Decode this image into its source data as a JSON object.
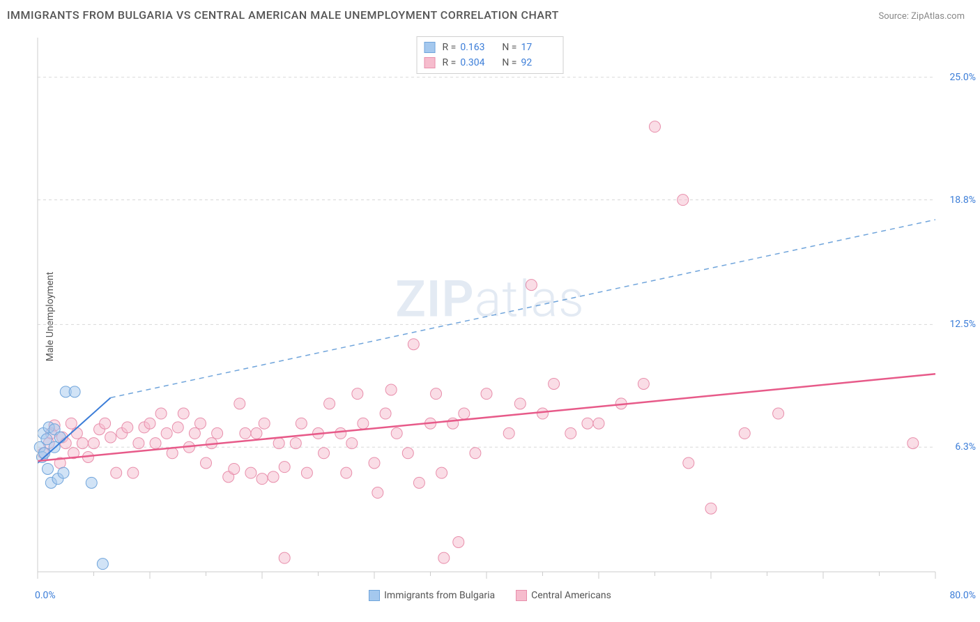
{
  "header": {
    "title": "IMMIGRANTS FROM BULGARIA VS CENTRAL AMERICAN MALE UNEMPLOYMENT CORRELATION CHART",
    "source": "Source: ZipAtlas.com"
  },
  "watermark": {
    "zip": "ZIP",
    "atlas": "atlas"
  },
  "ylabel": "Male Unemployment",
  "chart": {
    "type": "scatter",
    "background_color": "#ffffff",
    "grid_color": "#d8d8d8",
    "grid_dash": "4,4",
    "axis_color": "#cccccc",
    "xlim": [
      0,
      80
    ],
    "ylim": [
      0,
      27
    ],
    "x_ticks_major": [
      0,
      10,
      20,
      30,
      40,
      50,
      60,
      70,
      80
    ],
    "x_ticks_minor_step": 5,
    "y_gridlines": [
      6.3,
      12.5,
      18.8,
      25.0
    ],
    "x_axis_labels": {
      "min": "0.0%",
      "max": "80.0%"
    },
    "y_axis_labels": [
      "6.3%",
      "12.5%",
      "18.8%",
      "25.0%"
    ],
    "marker_radius": 8,
    "marker_opacity": 0.5,
    "series": {
      "bulgaria": {
        "label": "Immigrants from Bulgaria",
        "fill_color": "#a4c8ee",
        "stroke_color": "#6fa4db",
        "trend": {
          "x1": 0,
          "y1": 5.5,
          "x2": 6.5,
          "y2": 8.8,
          "color": "#3b7dd8",
          "width": 2,
          "solid": true
        },
        "trend_ext": {
          "x1": 6.5,
          "y1": 8.8,
          "x2": 80,
          "y2": 17.8,
          "color": "#6fa4db",
          "width": 1.5,
          "dash": "7,6"
        },
        "R": "0.163",
        "N": "17",
        "points": [
          [
            0.2,
            6.3
          ],
          [
            0.4,
            5.8
          ],
          [
            0.5,
            7.0
          ],
          [
            0.6,
            6.0
          ],
          [
            0.8,
            6.7
          ],
          [
            0.9,
            5.2
          ],
          [
            1.0,
            7.3
          ],
          [
            1.2,
            4.5
          ],
          [
            1.5,
            6.3
          ],
          [
            1.5,
            7.2
          ],
          [
            1.8,
            4.7
          ],
          [
            2.0,
            6.8
          ],
          [
            2.3,
            5.0
          ],
          [
            2.5,
            9.1
          ],
          [
            3.3,
            9.1
          ],
          [
            4.8,
            4.5
          ],
          [
            5.8,
            0.4
          ]
        ]
      },
      "central": {
        "label": "Central Americans",
        "fill_color": "#f6bccd",
        "stroke_color": "#e88eab",
        "trend": {
          "x1": 0,
          "y1": 5.6,
          "x2": 80,
          "y2": 10.0,
          "color": "#e75a89",
          "width": 2.5,
          "solid": true
        },
        "R": "0.304",
        "N": "92",
        "points": [
          [
            0.5,
            6.0
          ],
          [
            1.0,
            6.5
          ],
          [
            1.2,
            7.0
          ],
          [
            1.5,
            7.4
          ],
          [
            2.0,
            5.5
          ],
          [
            2.2,
            6.8
          ],
          [
            2.5,
            6.5
          ],
          [
            3.0,
            7.5
          ],
          [
            3.2,
            6.0
          ],
          [
            3.5,
            7.0
          ],
          [
            4.0,
            6.5
          ],
          [
            4.5,
            5.8
          ],
          [
            5.0,
            6.5
          ],
          [
            5.5,
            7.2
          ],
          [
            6.0,
            7.5
          ],
          [
            6.5,
            6.8
          ],
          [
            7.0,
            5.0
          ],
          [
            7.5,
            7.0
          ],
          [
            8.0,
            7.3
          ],
          [
            8.5,
            5.0
          ],
          [
            9.0,
            6.5
          ],
          [
            9.5,
            7.3
          ],
          [
            10.0,
            7.5
          ],
          [
            10.5,
            6.5
          ],
          [
            11.0,
            8.0
          ],
          [
            11.5,
            7.0
          ],
          [
            12.0,
            6.0
          ],
          [
            12.5,
            7.3
          ],
          [
            13.0,
            8.0
          ],
          [
            13.5,
            6.3
          ],
          [
            14.0,
            7.0
          ],
          [
            14.5,
            7.5
          ],
          [
            15.0,
            5.5
          ],
          [
            15.5,
            6.5
          ],
          [
            16.0,
            7.0
          ],
          [
            17.0,
            4.8
          ],
          [
            17.5,
            5.2
          ],
          [
            18.0,
            8.5
          ],
          [
            18.5,
            7.0
          ],
          [
            19.0,
            5.0
          ],
          [
            19.5,
            7.0
          ],
          [
            20.0,
            4.7
          ],
          [
            20.2,
            7.5
          ],
          [
            21.0,
            4.8
          ],
          [
            21.5,
            6.5
          ],
          [
            22.0,
            5.3
          ],
          [
            22.0,
            0.7
          ],
          [
            23.0,
            6.5
          ],
          [
            23.5,
            7.5
          ],
          [
            24.0,
            5.0
          ],
          [
            25.0,
            7.0
          ],
          [
            25.5,
            6.0
          ],
          [
            26.0,
            8.5
          ],
          [
            27.0,
            7.0
          ],
          [
            27.5,
            5.0
          ],
          [
            28.0,
            6.5
          ],
          [
            28.5,
            9.0
          ],
          [
            29.0,
            7.5
          ],
          [
            30.0,
            5.5
          ],
          [
            30.3,
            4.0
          ],
          [
            31.0,
            8.0
          ],
          [
            31.5,
            9.2
          ],
          [
            32.0,
            7.0
          ],
          [
            33.0,
            6.0
          ],
          [
            33.5,
            11.5
          ],
          [
            34.0,
            4.5
          ],
          [
            35.0,
            7.5
          ],
          [
            35.5,
            9.0
          ],
          [
            36.0,
            5.0
          ],
          [
            36.2,
            0.7
          ],
          [
            37.0,
            7.5
          ],
          [
            37.5,
            1.5
          ],
          [
            38.0,
            8.0
          ],
          [
            39.0,
            6.0
          ],
          [
            40.0,
            9.0
          ],
          [
            42.0,
            7.0
          ],
          [
            43.0,
            8.5
          ],
          [
            44.0,
            14.5
          ],
          [
            45.0,
            8.0
          ],
          [
            46.0,
            9.5
          ],
          [
            47.5,
            7.0
          ],
          [
            49.0,
            7.5
          ],
          [
            50.0,
            7.5
          ],
          [
            52.0,
            8.5
          ],
          [
            54.0,
            9.5
          ],
          [
            55.0,
            22.5
          ],
          [
            57.5,
            18.8
          ],
          [
            58.0,
            5.5
          ],
          [
            60.0,
            3.2
          ],
          [
            63.0,
            7.0
          ],
          [
            66.0,
            8.0
          ],
          [
            78.0,
            6.5
          ]
        ]
      }
    }
  },
  "legend_top": {
    "rows": [
      {
        "series": "bulgaria",
        "R_label": "R",
        "N_label": "N"
      },
      {
        "series": "central",
        "R_label": "R",
        "N_label": "N"
      }
    ]
  },
  "legend_bottom": {
    "items": [
      {
        "series": "bulgaria"
      },
      {
        "series": "central"
      }
    ]
  }
}
